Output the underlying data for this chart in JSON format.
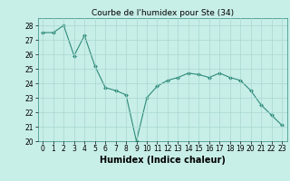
{
  "x": [
    0,
    1,
    2,
    3,
    4,
    5,
    6,
    7,
    8,
    9,
    10,
    11,
    12,
    13,
    14,
    15,
    16,
    17,
    18,
    19,
    20,
    21,
    22,
    23
  ],
  "y": [
    27.5,
    27.5,
    28.0,
    25.9,
    27.3,
    25.2,
    23.7,
    23.5,
    23.2,
    20.0,
    23.0,
    23.8,
    24.2,
    24.4,
    24.7,
    24.6,
    24.4,
    24.7,
    24.4,
    24.2,
    23.5,
    22.5,
    21.8,
    21.1
  ],
  "title": "Courbe de l'humidex pour Ste (34)",
  "xlabel": "Humidex (Indice chaleur)",
  "ylabel": "",
  "line_color": "#2e8b7a",
  "marker_color": "#2e8b7a",
  "bg_color": "#c8eee8",
  "grid_color": "#a8d8d0",
  "ylim": [
    20,
    28.5
  ],
  "yticks": [
    20,
    21,
    22,
    23,
    24,
    25,
    26,
    27,
    28
  ],
  "xticks": [
    0,
    1,
    2,
    3,
    4,
    5,
    6,
    7,
    8,
    9,
    10,
    11,
    12,
    13,
    14,
    15,
    16,
    17,
    18,
    19,
    20,
    21,
    22,
    23
  ],
  "title_fontsize": 6.5,
  "label_fontsize": 7,
  "tick_fontsize": 5.5
}
